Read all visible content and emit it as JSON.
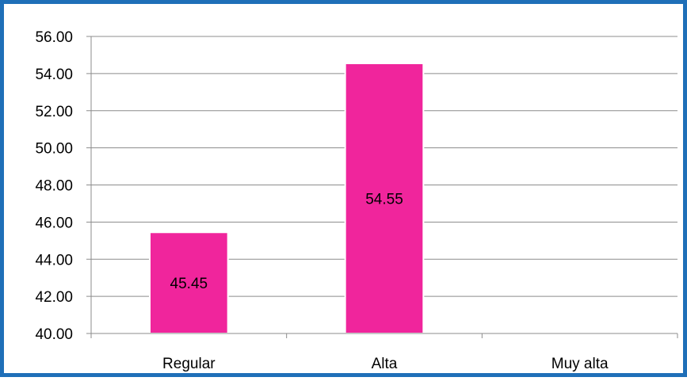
{
  "chart_data": {
    "type": "bar",
    "title": "",
    "xlabel": "",
    "ylabel": "",
    "categories": [
      "Regular",
      "Alta",
      "Muy alta"
    ],
    "values": [
      45.45,
      54.55,
      null
    ],
    "data_labels": [
      "45.45",
      "54.55",
      ""
    ],
    "ylim": [
      40,
      56
    ],
    "y_ticks": [
      40,
      42,
      44,
      46,
      48,
      50,
      52,
      54,
      56
    ],
    "y_tick_labels": [
      "40.00",
      "42.00",
      "44.00",
      "46.00",
      "48.00",
      "50.00",
      "52.00",
      "54.00",
      "56.00"
    ],
    "grid": true,
    "legend": "none",
    "colors": {
      "bar": "#f0259c",
      "border": "#1f6fb8",
      "grid": "#8c8c8c"
    }
  }
}
